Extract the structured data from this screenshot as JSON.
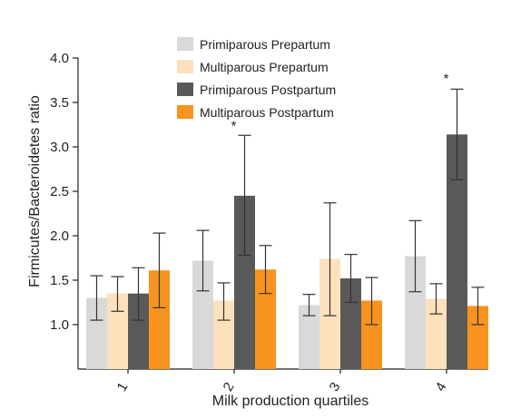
{
  "chart_data": {
    "type": "bar",
    "title": "",
    "xlabel": "Milk production quartiles",
    "ylabel": "Firmicutes/Bacteroidetes ratio",
    "ylim": [
      0.5,
      4.0
    ],
    "yticks": [
      1.0,
      1.5,
      2.0,
      2.5,
      3.0,
      3.5,
      4.0
    ],
    "ytick_labels": [
      "1.0",
      "1.5",
      "2.0",
      "2.5",
      "3.0",
      "3.5",
      "4.0"
    ],
    "categories": [
      "1",
      "2",
      "3",
      "4"
    ],
    "legend_position": "top",
    "series": [
      {
        "name": "Primiparous Prepartum",
        "color": "#d9d9d9",
        "values": [
          1.3,
          1.72,
          1.22,
          1.77
        ],
        "err_low": [
          1.05,
          1.38,
          1.1,
          1.37
        ],
        "err_high": [
          1.55,
          2.06,
          1.34,
          2.17
        ]
      },
      {
        "name": "Multiparous Prepartum",
        "color": "#fde1bd",
        "values": [
          1.35,
          1.27,
          1.74,
          1.29
        ],
        "err_low": [
          1.15,
          1.05,
          1.1,
          1.12
        ],
        "err_high": [
          1.54,
          1.47,
          2.37,
          1.46
        ]
      },
      {
        "name": "Primiparous Postpartum",
        "color": "#595959",
        "values": [
          1.35,
          2.45,
          1.52,
          3.14
        ],
        "err_low": [
          1.05,
          1.78,
          1.25,
          2.63
        ],
        "err_high": [
          1.64,
          3.13,
          1.79,
          3.65
        ]
      },
      {
        "name": "Multiparous Postpartum",
        "color": "#f7931e",
        "values": [
          1.61,
          1.62,
          1.27,
          1.21
        ],
        "err_low": [
          1.19,
          1.35,
          1.0,
          1.0
        ],
        "err_high": [
          2.03,
          1.89,
          1.53,
          1.42
        ]
      }
    ],
    "annotations": [
      {
        "text": "*",
        "category": "2",
        "value": 3.25
      },
      {
        "text": "*",
        "category": "4",
        "value": 3.78
      }
    ]
  }
}
